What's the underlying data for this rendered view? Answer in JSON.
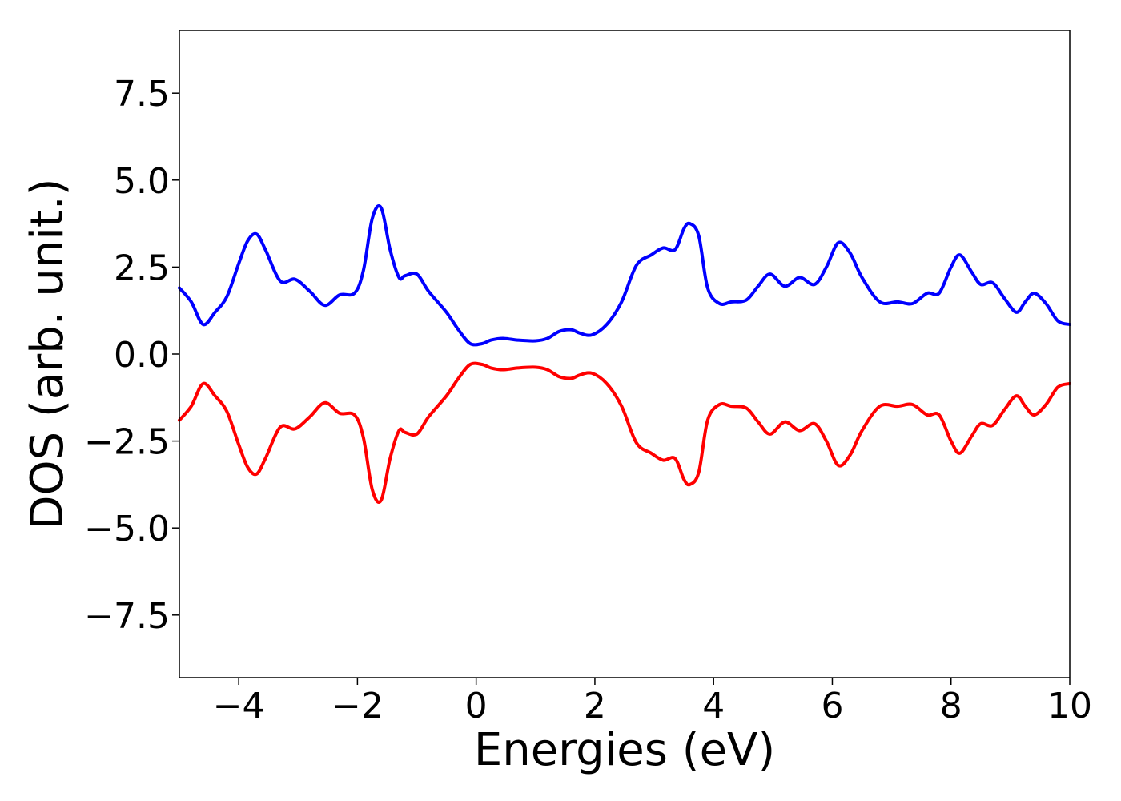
{
  "chart_data": {
    "type": "line",
    "title": "",
    "xlabel": "Energies (eV)",
    "ylabel": "DOS (arb. unit.)",
    "xlim": [
      -5,
      10
    ],
    "ylim": [
      -9.3,
      9.3
    ],
    "xticks": [
      -4,
      -2,
      0,
      2,
      4,
      6,
      8,
      10
    ],
    "xtick_labels": [
      "−4",
      "−2",
      "0",
      "2",
      "4",
      "6",
      "8",
      "10"
    ],
    "yticks": [
      7.5,
      5.0,
      2.5,
      0.0,
      -2.5,
      -5.0,
      -7.5
    ],
    "ytick_labels": [
      "7.5",
      "5.0",
      "2.5",
      "0.0",
      "−2.5",
      "−5.0",
      "−7.5"
    ],
    "grid": false,
    "legend": false,
    "series": [
      {
        "color": "#0000ff",
        "x": [
          -5.0,
          -4.8,
          -4.6,
          -4.4,
          -4.2,
          -4.0,
          -3.85,
          -3.7,
          -3.55,
          -3.3,
          -3.05,
          -2.8,
          -2.55,
          -2.3,
          -2.05,
          -1.9,
          -1.75,
          -1.6,
          -1.45,
          -1.3,
          -1.2,
          -1.0,
          -0.8,
          -0.5,
          -0.3,
          -0.1,
          0.1,
          0.25,
          0.45,
          0.7,
          1.0,
          1.2,
          1.4,
          1.6,
          1.75,
          1.95,
          2.2,
          2.45,
          2.7,
          2.95,
          3.15,
          3.35,
          3.5,
          3.6,
          3.75,
          3.9,
          4.1,
          4.3,
          4.55,
          4.75,
          4.95,
          5.2,
          5.45,
          5.7,
          5.9,
          6.1,
          6.3,
          6.5,
          6.8,
          7.1,
          7.35,
          7.6,
          7.8,
          8.0,
          8.15,
          8.35,
          8.5,
          8.7,
          8.9,
          9.1,
          9.25,
          9.4,
          9.6,
          9.8,
          10.0
        ],
        "y": [
          1.9,
          1.5,
          0.85,
          1.2,
          1.65,
          2.6,
          3.25,
          3.45,
          3.0,
          2.1,
          2.15,
          1.8,
          1.4,
          1.7,
          1.75,
          2.4,
          3.9,
          4.2,
          3.0,
          2.2,
          2.25,
          2.3,
          1.8,
          1.2,
          0.7,
          0.3,
          0.3,
          0.4,
          0.45,
          0.4,
          0.38,
          0.45,
          0.65,
          0.7,
          0.6,
          0.55,
          0.85,
          1.5,
          2.55,
          2.85,
          3.05,
          3.0,
          3.6,
          3.75,
          3.4,
          1.9,
          1.45,
          1.5,
          1.55,
          1.95,
          2.3,
          1.95,
          2.2,
          2.0,
          2.5,
          3.2,
          2.9,
          2.2,
          1.5,
          1.5,
          1.45,
          1.75,
          1.75,
          2.5,
          2.85,
          2.35,
          2.0,
          2.05,
          1.6,
          1.2,
          1.5,
          1.75,
          1.45,
          0.95,
          0.85
        ]
      },
      {
        "color": "#ff0000",
        "x": [
          -5.0,
          -4.8,
          -4.6,
          -4.4,
          -4.2,
          -4.0,
          -3.85,
          -3.7,
          -3.55,
          -3.3,
          -3.05,
          -2.8,
          -2.55,
          -2.3,
          -2.05,
          -1.9,
          -1.75,
          -1.6,
          -1.45,
          -1.3,
          -1.2,
          -1.0,
          -0.8,
          -0.5,
          -0.3,
          -0.1,
          0.1,
          0.25,
          0.45,
          0.7,
          1.0,
          1.2,
          1.4,
          1.6,
          1.75,
          1.95,
          2.2,
          2.45,
          2.7,
          2.95,
          3.15,
          3.35,
          3.5,
          3.6,
          3.75,
          3.9,
          4.1,
          4.3,
          4.55,
          4.75,
          4.95,
          5.2,
          5.45,
          5.7,
          5.9,
          6.1,
          6.3,
          6.5,
          6.8,
          7.1,
          7.35,
          7.6,
          7.8,
          8.0,
          8.15,
          8.35,
          8.5,
          8.7,
          8.9,
          9.1,
          9.25,
          9.4,
          9.6,
          9.8,
          10.0
        ],
        "y": [
          -1.9,
          -1.5,
          -0.85,
          -1.2,
          -1.65,
          -2.6,
          -3.25,
          -3.45,
          -3.0,
          -2.1,
          -2.15,
          -1.8,
          -1.4,
          -1.7,
          -1.75,
          -2.4,
          -3.9,
          -4.2,
          -3.0,
          -2.2,
          -2.25,
          -2.3,
          -1.8,
          -1.2,
          -0.7,
          -0.3,
          -0.3,
          -0.4,
          -0.45,
          -0.4,
          -0.38,
          -0.45,
          -0.65,
          -0.7,
          -0.6,
          -0.55,
          -0.85,
          -1.5,
          -2.55,
          -2.85,
          -3.05,
          -3.0,
          -3.6,
          -3.75,
          -3.4,
          -1.9,
          -1.45,
          -1.5,
          -1.55,
          -1.95,
          -2.3,
          -1.95,
          -2.2,
          -2.0,
          -2.5,
          -3.2,
          -2.9,
          -2.2,
          -1.5,
          -1.5,
          -1.45,
          -1.75,
          -1.75,
          -2.5,
          -2.85,
          -2.35,
          -2.0,
          -2.05,
          -1.6,
          -1.2,
          -1.5,
          -1.75,
          -1.45,
          -0.95,
          -0.85
        ]
      }
    ]
  }
}
